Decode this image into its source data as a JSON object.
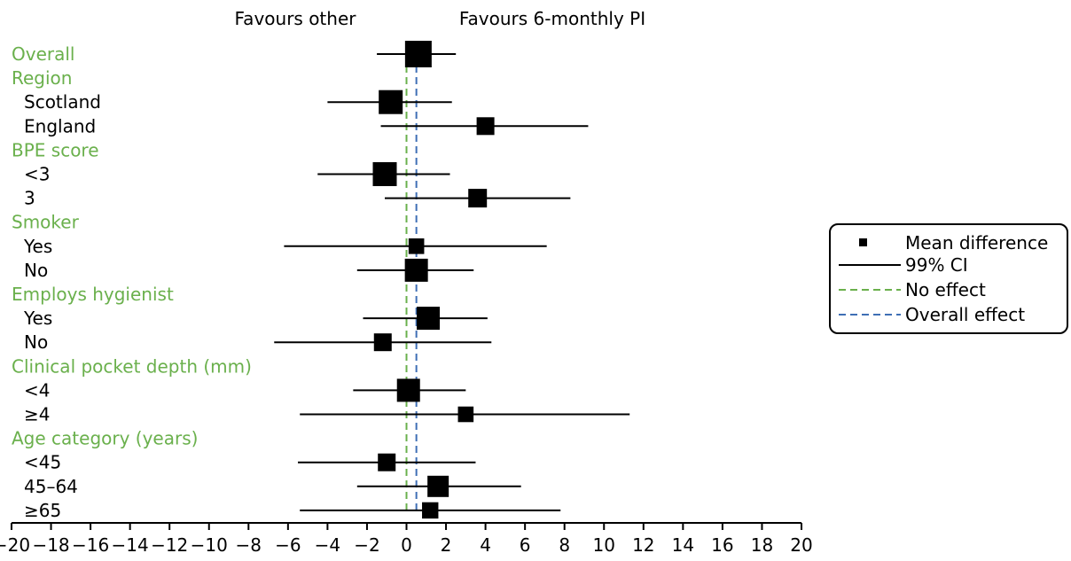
{
  "colors": {
    "group_label": "#6ab04c",
    "no_effect_line": "#6ab04c",
    "overall_effect_line": "#3f6fb5",
    "marker": "#000000",
    "ci_line": "#000000"
  },
  "header": {
    "favours_left": "Favours other",
    "favours_right": "Favours 6-monthly PI"
  },
  "legend": {
    "mean_difference": "Mean difference",
    "ci": "99% CI",
    "no_effect": "No effect",
    "overall_effect": "Overall effect"
  },
  "chart_data": {
    "type": "forest",
    "xlim": [
      -20,
      20
    ],
    "xticks": [
      "−20",
      "−18",
      "−16",
      "−14",
      "−12",
      "−10",
      "−8",
      "−6",
      "−4",
      "−2",
      "0",
      "2",
      "4",
      "6",
      "8",
      "10",
      "12",
      "14",
      "16",
      "18",
      "20"
    ],
    "no_effect": 0,
    "overall_effect": 0.5,
    "rows": [
      {
        "label": "Overall",
        "kind": "group",
        "est": 0.6,
        "lo": -1.5,
        "hi": 2.5,
        "weight": 1.0
      },
      {
        "label": "Region",
        "kind": "group"
      },
      {
        "label": "Scotland",
        "kind": "item",
        "est": -0.8,
        "lo": -4.0,
        "hi": 2.3,
        "weight": 0.85
      },
      {
        "label": "England",
        "kind": "item",
        "est": 4.0,
        "lo": -1.3,
        "hi": 9.2,
        "weight": 0.5
      },
      {
        "label": "BPE score",
        "kind": "group"
      },
      {
        "label": "<3",
        "kind": "item",
        "est": -1.1,
        "lo": -4.5,
        "hi": 2.2,
        "weight": 0.85
      },
      {
        "label": "3",
        "kind": "item",
        "est": 3.6,
        "lo": -1.1,
        "hi": 8.3,
        "weight": 0.55
      },
      {
        "label": "Smoker",
        "kind": "group"
      },
      {
        "label": "Yes",
        "kind": "item",
        "est": 0.5,
        "lo": -6.2,
        "hi": 7.1,
        "weight": 0.38
      },
      {
        "label": "No",
        "kind": "item",
        "est": 0.5,
        "lo": -2.5,
        "hi": 3.4,
        "weight": 0.8
      },
      {
        "label": "Employs hygienist",
        "kind": "group"
      },
      {
        "label": "Yes",
        "kind": "item",
        "est": 1.1,
        "lo": -2.2,
        "hi": 4.1,
        "weight": 0.8
      },
      {
        "label": "No",
        "kind": "item",
        "est": -1.2,
        "lo": -6.7,
        "hi": 4.3,
        "weight": 0.5
      },
      {
        "label": "Clinical pocket depth (mm)",
        "kind": "group"
      },
      {
        "label": "<4",
        "kind": "item",
        "est": 0.1,
        "lo": -2.7,
        "hi": 3.0,
        "weight": 0.8
      },
      {
        "label": "≥4",
        "kind": "item",
        "est": 3.0,
        "lo": -5.4,
        "hi": 11.3,
        "weight": 0.38
      },
      {
        "label": "Age category (years)",
        "kind": "group"
      },
      {
        "label": "<45",
        "kind": "item",
        "est": -1.0,
        "lo": -5.5,
        "hi": 3.5,
        "weight": 0.5
      },
      {
        "label": "45–64",
        "kind": "item",
        "est": 1.6,
        "lo": -2.5,
        "hi": 5.8,
        "weight": 0.7
      },
      {
        "label": "≥65",
        "kind": "item",
        "est": 1.2,
        "lo": -5.4,
        "hi": 7.8,
        "weight": 0.42
      }
    ]
  }
}
